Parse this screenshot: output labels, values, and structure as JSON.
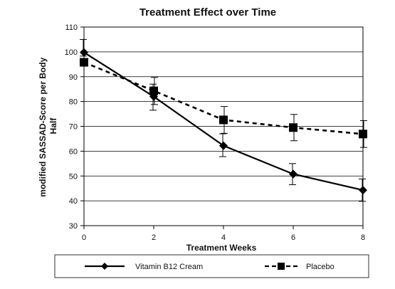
{
  "chart_data": {
    "type": "line",
    "title": "Treatment Effect over Time",
    "xlabel": "Treatment Weeks",
    "ylabel_lines": [
      "modified SASSAD-Score per Body",
      "Half"
    ],
    "x": [
      0,
      2,
      4,
      6,
      8
    ],
    "xlim": [
      0,
      8
    ],
    "ylim": [
      30,
      110
    ],
    "yticks": [
      30,
      40,
      50,
      60,
      70,
      80,
      90,
      100,
      110
    ],
    "xticks": [
      0,
      2,
      4,
      6,
      8
    ],
    "grid": true,
    "legend_position": "bottom",
    "series": [
      {
        "name": "Vitamin B12 Cream",
        "marker": "diamond",
        "line": "solid",
        "color": "#000000",
        "values": [
          99.8,
          82.0,
          62.2,
          50.8,
          44.3
        ],
        "err_low": [
          98.3,
          76.5,
          57.8,
          46.5,
          39.8
        ],
        "err_high": [
          105.0,
          87.0,
          67.0,
          55.0,
          48.8
        ]
      },
      {
        "name": "Placebo",
        "marker": "square",
        "line": "dashed",
        "color": "#000000",
        "values": [
          95.8,
          84.3,
          72.6,
          69.5,
          66.9
        ],
        "err_low": [
          95.8,
          78.8,
          67.2,
          64.2,
          61.5
        ],
        "err_high": [
          95.8,
          89.7,
          78.0,
          74.8,
          72.3
        ]
      }
    ]
  }
}
